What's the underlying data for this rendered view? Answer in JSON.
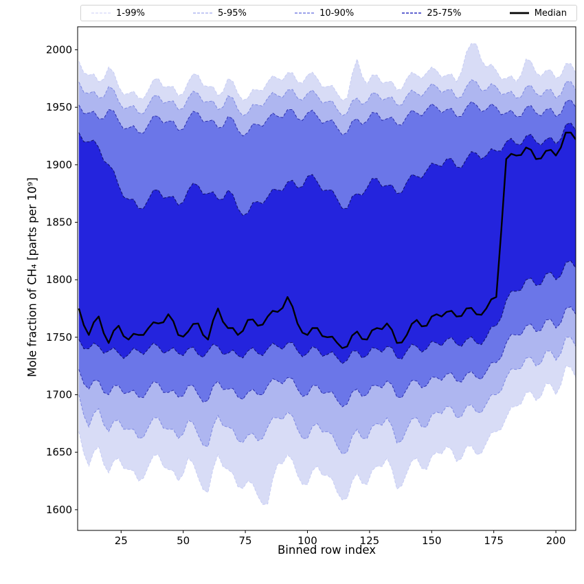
{
  "legend": {
    "items": [
      {
        "label": "1-99%",
        "color": "#d4d8f6",
        "dash": "4 2",
        "width": 1.2
      },
      {
        "label": "5-95%",
        "color": "#a0a9ee",
        "dash": "4 2",
        "width": 1.2
      },
      {
        "label": "10-90%",
        "color": "#5d68dd",
        "dash": "4 2",
        "width": 1.2
      },
      {
        "label": "25-75%",
        "color": "#2a2ec0",
        "dash": "4 2",
        "width": 1.5
      },
      {
        "label": "Median",
        "color": "#000000",
        "dash": "",
        "width": 2.8
      }
    ]
  },
  "chart_data": {
    "type": "area",
    "title": "",
    "xlabel": "Binned row index",
    "ylabel": "Mole fraction of CH₄ [parts per 10⁹]",
    "xlim": [
      7.5,
      208
    ],
    "ylim": [
      1582,
      2020
    ],
    "xticks": [
      25,
      50,
      75,
      100,
      125,
      150,
      175,
      200
    ],
    "yticks": [
      1600,
      1650,
      1700,
      1750,
      1800,
      1850,
      1900,
      1950,
      2000
    ],
    "legend_position": "top",
    "grid": false,
    "x": [
      8,
      12,
      16,
      20,
      24,
      28,
      32,
      36,
      40,
      44,
      48,
      52,
      56,
      60,
      64,
      68,
      72,
      76,
      80,
      84,
      88,
      92,
      96,
      100,
      104,
      108,
      112,
      116,
      120,
      124,
      128,
      132,
      136,
      140,
      144,
      148,
      152,
      156,
      160,
      164,
      168,
      172,
      176,
      180,
      184,
      188,
      192,
      196,
      200,
      204,
      208
    ],
    "bands": [
      {
        "label": "1-99%",
        "fill": "#d8dcf6",
        "edge": "#c6ccf4",
        "low": [
          1668,
          1638,
          1655,
          1632,
          1645,
          1635,
          1625,
          1638,
          1648,
          1635,
          1625,
          1645,
          1628,
          1615,
          1648,
          1635,
          1620,
          1625,
          1612,
          1605,
          1640,
          1648,
          1630,
          1622,
          1638,
          1630,
          1615,
          1610,
          1632,
          1622,
          1638,
          1645,
          1618,
          1632,
          1645,
          1635,
          1650,
          1655,
          1642,
          1655,
          1648,
          1658,
          1668,
          1680,
          1690,
          1702,
          1695,
          1710,
          1700,
          1725,
          1715
        ],
        "high": [
          1990,
          1978,
          1972,
          1985,
          1968,
          1962,
          1958,
          1965,
          1975,
          1968,
          1960,
          1972,
          1978,
          1968,
          1960,
          1975,
          1962,
          1958,
          1965,
          1972,
          1975,
          1980,
          1972,
          1978,
          1975,
          1968,
          1962,
          1958,
          1992,
          1970,
          1978,
          1972,
          1965,
          1975,
          1978,
          1980,
          1982,
          1978,
          1972,
          1998,
          2005,
          1985,
          1982,
          1975,
          1972,
          1992,
          1980,
          1982,
          1975,
          1988,
          1980
        ]
      },
      {
        "label": "5-95%",
        "fill": "#aeb6f0",
        "edge": "#7d88e0",
        "low": [
          1700,
          1672,
          1688,
          1668,
          1678,
          1670,
          1662,
          1672,
          1680,
          1670,
          1662,
          1678,
          1665,
          1655,
          1682,
          1672,
          1660,
          1665,
          1660,
          1672,
          1680,
          1685,
          1670,
          1662,
          1675,
          1668,
          1655,
          1650,
          1670,
          1662,
          1675,
          1680,
          1658,
          1670,
          1680,
          1672,
          1685,
          1690,
          1680,
          1690,
          1685,
          1692,
          1700,
          1715,
          1722,
          1732,
          1725,
          1738,
          1730,
          1750,
          1742
        ],
        "high": [
          1972,
          1962,
          1958,
          1968,
          1955,
          1950,
          1945,
          1952,
          1960,
          1955,
          1948,
          1958,
          1962,
          1955,
          1948,
          1960,
          1948,
          1945,
          1952,
          1958,
          1960,
          1965,
          1958,
          1962,
          1960,
          1955,
          1948,
          1945,
          1958,
          1955,
          1962,
          1958,
          1952,
          1960,
          1962,
          1965,
          1968,
          1965,
          1958,
          1968,
          1972,
          1965,
          1968,
          1962,
          1958,
          1968,
          1962,
          1965,
          1958,
          1972,
          1965
        ]
      },
      {
        "label": "10-90%",
        "fill": "#6b76e8",
        "edge": "#2b2fae",
        "low": [
          1722,
          1705,
          1712,
          1700,
          1708,
          1702,
          1698,
          1705,
          1710,
          1702,
          1698,
          1708,
          1700,
          1695,
          1712,
          1705,
          1698,
          1702,
          1700,
          1708,
          1712,
          1715,
          1705,
          1700,
          1708,
          1702,
          1695,
          1692,
          1705,
          1700,
          1708,
          1712,
          1698,
          1705,
          1712,
          1708,
          1715,
          1718,
          1712,
          1718,
          1715,
          1720,
          1728,
          1745,
          1752,
          1760,
          1755,
          1765,
          1758,
          1775,
          1770
        ],
        "high": [
          1952,
          1945,
          1940,
          1948,
          1938,
          1932,
          1928,
          1935,
          1942,
          1938,
          1930,
          1940,
          1945,
          1938,
          1932,
          1942,
          1930,
          1928,
          1935,
          1940,
          1942,
          1948,
          1940,
          1945,
          1942,
          1938,
          1932,
          1928,
          1940,
          1938,
          1945,
          1940,
          1935,
          1942,
          1945,
          1948,
          1950,
          1948,
          1942,
          1950,
          1952,
          1948,
          1950,
          1945,
          1942,
          1950,
          1945,
          1948,
          1942,
          1955,
          1950
        ]
      },
      {
        "label": "25-75%",
        "fill": "#2424dd",
        "edge": "#10106a",
        "low": [
          1748,
          1740,
          1742,
          1738,
          1736,
          1735,
          1738,
          1740,
          1742,
          1738,
          1736,
          1740,
          1735,
          1738,
          1742,
          1736,
          1734,
          1738,
          1736,
          1740,
          1742,
          1745,
          1738,
          1736,
          1740,
          1735,
          1732,
          1730,
          1738,
          1734,
          1740,
          1742,
          1732,
          1738,
          1742,
          1740,
          1745,
          1748,
          1744,
          1748,
          1745,
          1750,
          1760,
          1782,
          1790,
          1800,
          1795,
          1805,
          1800,
          1815,
          1810
        ],
        "high": [
          1928,
          1920,
          1915,
          1900,
          1882,
          1870,
          1862,
          1870,
          1878,
          1872,
          1865,
          1878,
          1882,
          1875,
          1870,
          1878,
          1862,
          1858,
          1868,
          1872,
          1878,
          1885,
          1880,
          1890,
          1885,
          1878,
          1870,
          1862,
          1875,
          1880,
          1888,
          1882,
          1875,
          1885,
          1890,
          1895,
          1900,
          1905,
          1898,
          1905,
          1910,
          1908,
          1912,
          1920,
          1918,
          1925,
          1920,
          1922,
          1918,
          1935,
          1930
        ]
      }
    ],
    "median": {
      "label": "Median",
      "color": "#000000",
      "values": [
        1775,
        1752,
        1768,
        1745,
        1760,
        1748,
        1752,
        1758,
        1762,
        1770,
        1752,
        1755,
        1762,
        1748,
        1775,
        1758,
        1752,
        1765,
        1760,
        1768,
        1772,
        1785,
        1762,
        1752,
        1758,
        1750,
        1745,
        1742,
        1755,
        1748,
        1758,
        1762,
        1745,
        1752,
        1765,
        1760,
        1770,
        1772,
        1768,
        1775,
        1770,
        1775,
        1785,
        1905,
        1908,
        1915,
        1905,
        1912,
        1908,
        1928,
        1922
      ]
    }
  }
}
